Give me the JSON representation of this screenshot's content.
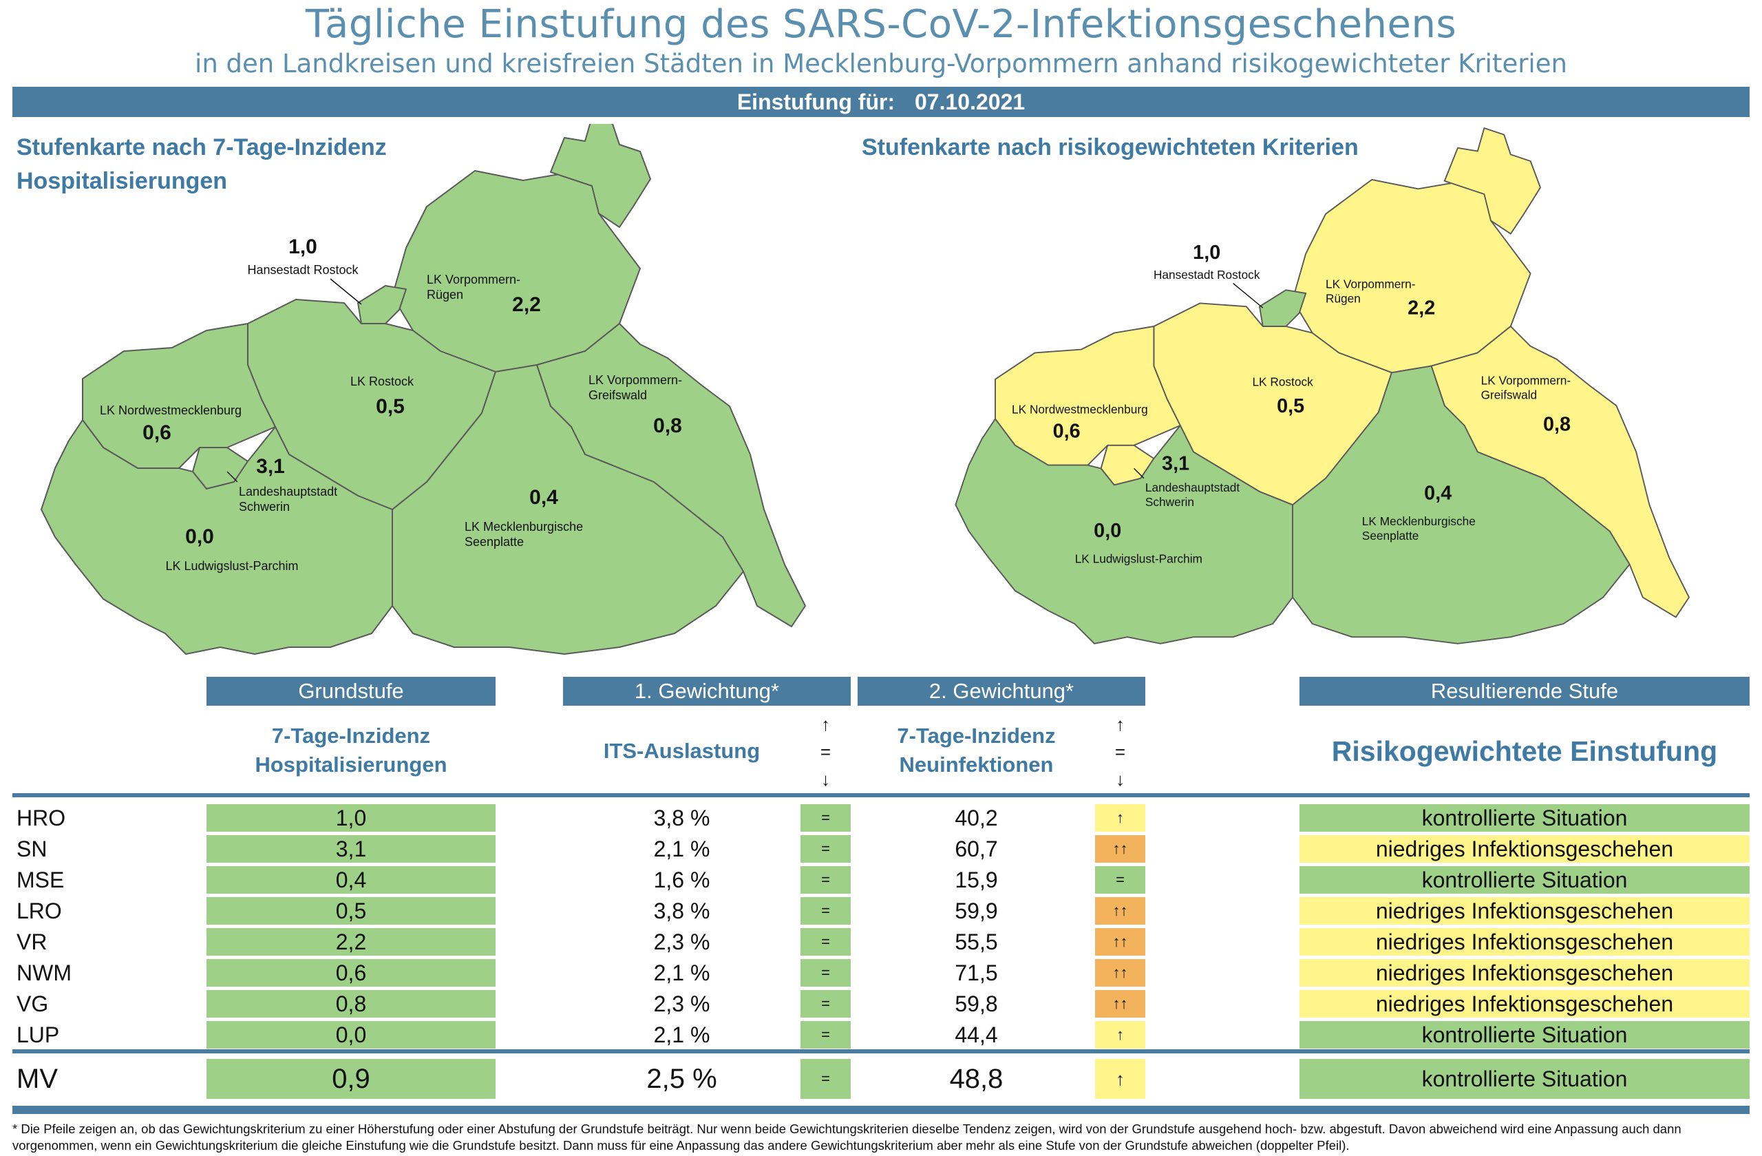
{
  "title": "Tägliche Einstufung des SARS-CoV-2-Infektionsgeschehens",
  "subtitle": "in den Landkreisen und kreisfreien Städten in Mecklenburg-Vorpommern anhand risikogewichteter Kriterien",
  "date_bar": {
    "label": "Einstufung für:",
    "date": "07.10.2021"
  },
  "map_left": {
    "heading_line1": "Stufenkarte nach 7-Tage-Inzidenz",
    "heading_line2": "Hospitalisierungen"
  },
  "map_right": {
    "heading": "Stufenkarte nach risikogewichteten Kriterien"
  },
  "map_regions": {
    "hro": {
      "name": "Hansestadt Rostock",
      "value": "1,0"
    },
    "vr": {
      "name_line1": "LK Vorpommern-",
      "name_line2": "Rügen",
      "value": "2,2"
    },
    "lro": {
      "name": "LK Rostock",
      "value": "0,5"
    },
    "vg": {
      "name_line1": "LK Vorpommern-",
      "name_line2": "Greifswald",
      "value": "0,8"
    },
    "nwm": {
      "name": "LK Nordwestmecklenburg",
      "value": "0,6"
    },
    "sn": {
      "name_line1": "Landeshauptstadt",
      "name_line2": "Schwerin",
      "value": "3,1"
    },
    "mse": {
      "name_line1": "LK Mecklenburgische",
      "name_line2": "Seenplatte",
      "value": "0,4"
    },
    "lup": {
      "name": "LK Ludwigslust-Parchim",
      "value": "0,0"
    }
  },
  "colors": {
    "green": "#9ed187",
    "yellow": "#fff58a",
    "orange": "#f3b35c",
    "header_blue": "#4a7ca0",
    "text_blue": "#3e7aa4"
  },
  "table": {
    "headers": {
      "grundstufe": "Grundstufe",
      "gewichtung1": "1. Gewichtung*",
      "gewichtung2": "2. Gewichtung*",
      "resultierend": "Resultierende Stufe"
    },
    "subheaders": {
      "grundstufe_line1": "7-Tage-Inzidenz",
      "grundstufe_line2": "Hospitalisierungen",
      "its": "ITS-Auslastung",
      "inz_line1": "7-Tage-Inzidenz",
      "inz_line2": "Neuinfektionen",
      "result": "Risikogewichtete Einstufung",
      "arrow_up": "↑",
      "arrow_eq": "=",
      "arrow_down": "↓"
    },
    "rows": [
      {
        "code": "HRO",
        "hosp": "1,0",
        "its": "3,8 %",
        "its_trend": "=",
        "inz": "40,2",
        "inz_trend": "↑",
        "result": "kontrollierte Situation"
      },
      {
        "code": "SN",
        "hosp": "3,1",
        "its": "2,1 %",
        "its_trend": "=",
        "inz": "60,7",
        "inz_trend": "↑↑",
        "result": "niedriges Infektionsgeschehen"
      },
      {
        "code": "MSE",
        "hosp": "0,4",
        "its": "1,6 %",
        "its_trend": "=",
        "inz": "15,9",
        "inz_trend": "=",
        "result": "kontrollierte Situation"
      },
      {
        "code": "LRO",
        "hosp": "0,5",
        "its": "3,8 %",
        "its_trend": "=",
        "inz": "59,9",
        "inz_trend": "↑↑",
        "result": "niedriges Infektionsgeschehen"
      },
      {
        "code": "VR",
        "hosp": "2,2",
        "its": "2,3 %",
        "its_trend": "=",
        "inz": "55,5",
        "inz_trend": "↑↑",
        "result": "niedriges Infektionsgeschehen"
      },
      {
        "code": "NWM",
        "hosp": "0,6",
        "its": "2,1 %",
        "its_trend": "=",
        "inz": "71,5",
        "inz_trend": "↑↑",
        "result": "niedriges Infektionsgeschehen"
      },
      {
        "code": "VG",
        "hosp": "0,8",
        "its": "2,3 %",
        "its_trend": "=",
        "inz": "59,8",
        "inz_trend": "↑↑",
        "result": "niedriges Infektionsgeschehen"
      },
      {
        "code": "LUP",
        "hosp": "0,0",
        "its": "2,1 %",
        "its_trend": "=",
        "inz": "44,4",
        "inz_trend": "↑",
        "result": "kontrollierte Situation"
      }
    ],
    "total": {
      "code": "MV",
      "hosp": "0,9",
      "its": "2,5 %",
      "its_trend": "=",
      "inz": "48,8",
      "inz_trend": "↑",
      "result": "kontrollierte Situation"
    }
  },
  "footnote": "* Die Pfeile zeigen an, ob das Gewichtungskriterium zu einer Höherstufung oder einer Abstufung der Grundstufe beiträgt. Nur wenn beide Gewichtungskriterien dieselbe Tendenz zeigen, wird von der Grundstufe ausgehend hoch- bzw. abgestuft.  Davon abweichend wird eine Anpassung auch dann vorgenommen, wenn ein Gewichtungskriterium die gleiche Einstufung wie die Grundstufe besitzt. Dann muss für eine Anpassung das andere Gewichtungskriterium aber mehr als eine Stufe von der Grundstufe abweichen (doppelter Pfeil)."
}
